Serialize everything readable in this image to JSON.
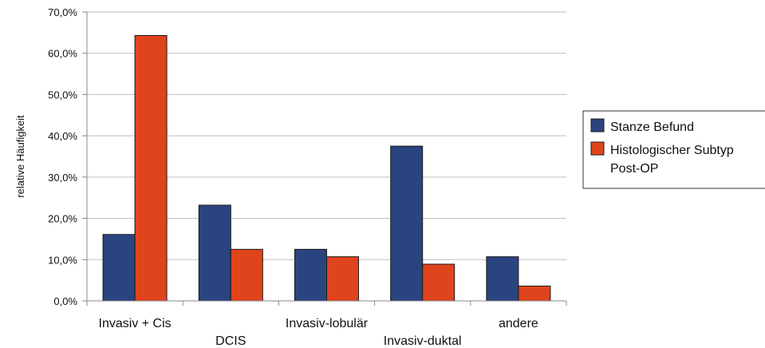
{
  "chart_data": {
    "type": "bar",
    "title": "",
    "xlabel": "",
    "ylabel": "relative Häufigkeit",
    "ylim": [
      0,
      70
    ],
    "yticks": [
      "0,0%",
      "10,0%",
      "20,0%",
      "30,0%",
      "40,0%",
      "50,0%",
      "60,0%",
      "70,0%"
    ],
    "grid": true,
    "legend_position": "right",
    "categories": [
      "Invasiv + Cis",
      "DCIS",
      "Invasiv-lobulär",
      "Invasiv-duktal",
      "andere"
    ],
    "series": [
      {
        "name": "Stanze Befund",
        "color": "#2a4480",
        "values": [
          16.1,
          23.2,
          12.5,
          37.5,
          10.7
        ]
      },
      {
        "name": "Histologischer Subtyp Post-OP",
        "color": "#e0441c",
        "values": [
          64.3,
          12.5,
          10.7,
          8.9,
          3.6
        ]
      }
    ],
    "legend_lines": [
      [
        "Stanze Befund"
      ],
      [
        "Histologischer Subtyp",
        "Post-OP"
      ]
    ]
  }
}
